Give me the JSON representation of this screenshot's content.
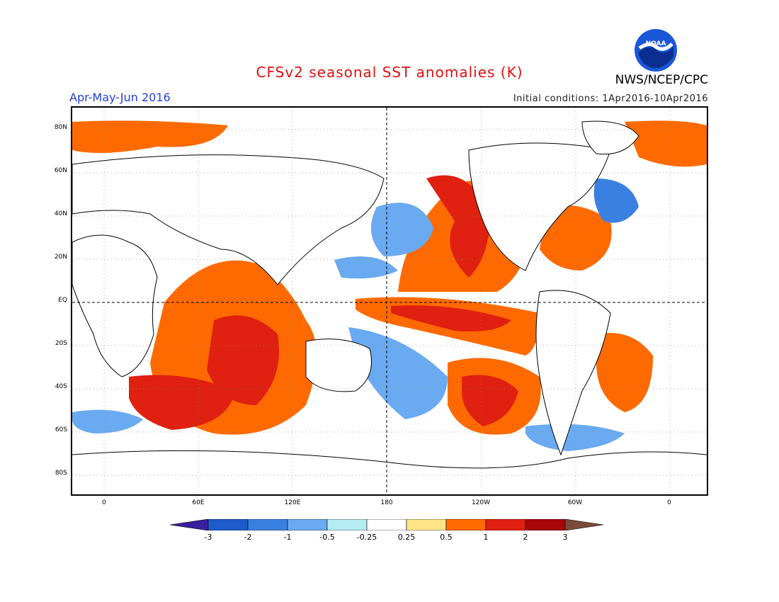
{
  "header": {
    "title": "CFSv2 seasonal SST anomalies (K)",
    "season": "Apr-May-Jun 2016",
    "initial_conditions": "Initial conditions: 1Apr2016-10Apr2016",
    "agency": "NWS/NCEP/CPC",
    "logo_text": "NOAA"
  },
  "map": {
    "lat_labels": [
      "80N",
      "60N",
      "40N",
      "20N",
      "EQ",
      "20S",
      "40S",
      "60S",
      "80S"
    ],
    "lon_labels": [
      "0",
      "60E",
      "120E",
      "180",
      "120W",
      "60W",
      "0"
    ]
  },
  "colorbar": {
    "labels": [
      "-3",
      "-2",
      "-1",
      "-0.5",
      "-0.25",
      "0.25",
      "0.5",
      "1",
      "2",
      "3"
    ],
    "colors": [
      "#3a1fa0",
      "#1e5ccc",
      "#3a80e0",
      "#6aaaf0",
      "#b4ecf4",
      "#ffffff",
      "#ffe48a",
      "#ff6a00",
      "#e02010",
      "#a80808",
      "#7a4a3a"
    ]
  }
}
